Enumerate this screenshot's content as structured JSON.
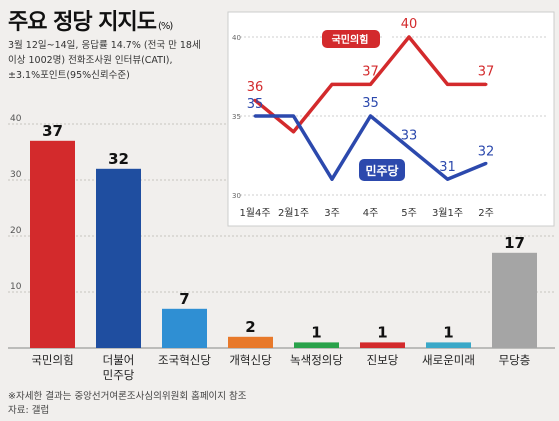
{
  "header": {
    "title": "주요 정당 지지도",
    "unit": "(%)",
    "survey_lines": [
      "3월 12일~14일, 응답률 14.7% (전국 만 18세",
      "이상 1002명) 전화조사원 인터뷰(CATI),",
      "±3.1%포인트(95%신뢰수준)"
    ]
  },
  "footer": {
    "note": "※자세한 결과는 중앙선거여론조사심의위원회 홈페이지 참조",
    "source": "자료: 갤럽"
  },
  "chart_data": [
    {
      "type": "bar",
      "categories": [
        "국민의힘",
        "더불어\n민주당",
        "조국혁신당",
        "개혁신당",
        "녹색정의당",
        "진보당",
        "새로운미래",
        "무당층"
      ],
      "values": [
        37,
        32,
        7,
        2,
        1,
        1,
        1,
        17
      ],
      "value_labels": [
        "37",
        "32",
        "7",
        "2",
        "1",
        "1",
        "1",
        "17"
      ],
      "colors": [
        "#d32a2c",
        "#1f4ea0",
        "#2f8fd3",
        "#e8792a",
        "#29a24a",
        "#d32a2c",
        "#3aa8c8",
        "#a5a5a5"
      ],
      "yticks": [
        10,
        20,
        30,
        40
      ],
      "ytick_labels": [
        "10",
        "20",
        "30",
        "40"
      ],
      "ylim": [
        0,
        40
      ],
      "grid": true
    },
    {
      "type": "line",
      "x": [
        "1월4주",
        "2월1주",
        "3주",
        "4주",
        "5주",
        "3월1주",
        "2주"
      ],
      "yticks": [
        30,
        35,
        40
      ],
      "ytick_labels": [
        "30",
        "35",
        "40"
      ],
      "ylim": [
        30,
        40
      ],
      "series": [
        {
          "name": "국민의힘",
          "color": "#d32a2c",
          "values": [
            36,
            34,
            37,
            37,
            40,
            37,
            37
          ],
          "point_labels": [
            "36",
            "",
            "",
            "37",
            "40",
            "",
            "37"
          ]
        },
        {
          "name": "민주당",
          "color": "#2c49ad",
          "values": [
            35,
            35,
            31,
            35,
            33,
            31,
            32
          ],
          "point_labels": [
            "35",
            "",
            "",
            "35",
            "33",
            "31",
            "32"
          ]
        }
      ]
    }
  ]
}
